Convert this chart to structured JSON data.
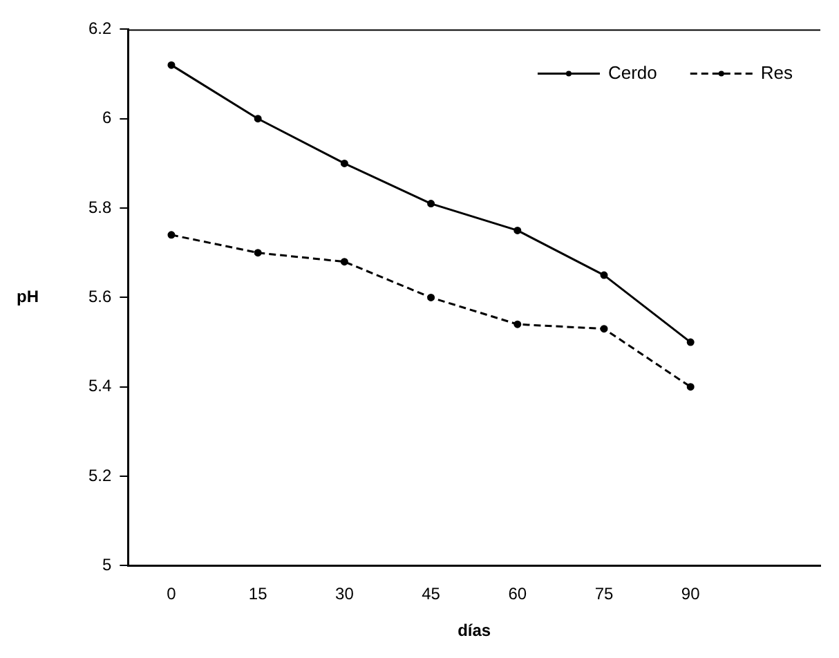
{
  "chart_data": {
    "type": "line",
    "xlabel": "días",
    "ylabel": "pH",
    "categories": [
      "0",
      "15",
      "30",
      "45",
      "60",
      "75",
      "90",
      null
    ],
    "series": [
      {
        "name": "Cerdo",
        "color": "#000000",
        "line_style": "solid",
        "values": [
          6.12,
          6.0,
          5.9,
          5.81,
          5.75,
          5.65,
          5.5,
          null
        ]
      },
      {
        "name": "Res",
        "color": "#000000",
        "line_style": "dashed",
        "values": [
          5.74,
          5.7,
          5.68,
          5.6,
          5.54,
          5.53,
          5.4,
          null
        ]
      }
    ],
    "ylim": [
      5,
      6.2
    ],
    "yticks": [
      5,
      5.2,
      5.4,
      5.6,
      5.8,
      6,
      6.2
    ],
    "grid": false,
    "legend": "top right",
    "marker": "circle"
  }
}
